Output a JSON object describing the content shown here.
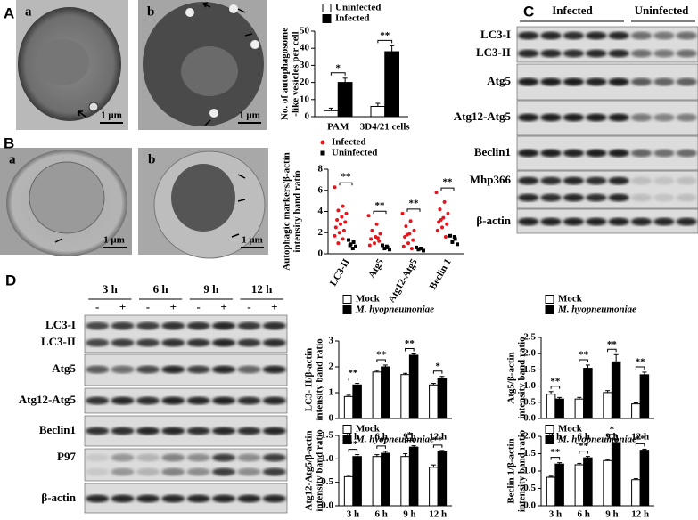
{
  "panel_labels": [
    "A",
    "B",
    "C",
    "D"
  ],
  "images": [
    {
      "label": "a",
      "scale": "1 μm"
    },
    {
      "label": "b",
      "scale": "1 μm"
    },
    {
      "label": "a",
      "scale": "1 μm"
    },
    {
      "label": "b",
      "scale": "1 μm"
    }
  ],
  "blots": [
    {
      "header": [
        "Infected",
        "Uninfected"
      ],
      "rows": [
        "LC3-I",
        "LC3-II",
        "Atg5",
        "Atg12-Atg5",
        "Beclin1",
        "Mhp366",
        "β-actin"
      ]
    },
    {
      "times": [
        "3 h",
        "6 h",
        "9 h",
        "12 h"
      ],
      "signs": [
        "-",
        "+"
      ],
      "rows": [
        "LC3-I",
        "LC3-II",
        "Atg5",
        "Atg12-Atg5",
        "Beclin1",
        "P97",
        "β-actin"
      ]
    }
  ],
  "chart_data": [
    {
      "type": "bar",
      "ylabel": [
        "No. of autophagosome",
        "-like vesicles per cell"
      ],
      "categories": [
        "PAM",
        "3D4/21 cells"
      ],
      "series": [
        {
          "name": "Uninfected",
          "color": "#ffffff",
          "values": [
            3.5,
            6
          ],
          "errors": [
            1.5,
            1.8
          ]
        },
        {
          "name": "Infected",
          "color": "#000000",
          "values": [
            20,
            38
          ],
          "errors": [
            2.5,
            3.5
          ]
        }
      ],
      "significance": [
        "*",
        "**"
      ],
      "ylim": [
        0,
        50
      ],
      "yticks": [
        0,
        10,
        20,
        30,
        40,
        50
      ]
    },
    {
      "type": "scatter",
      "ylabel": [
        "Autophagic markers/β-actin",
        "intensity band ratio"
      ],
      "categories": [
        "LC3-II",
        "Atg5",
        "Atg12-Atg5",
        "Beclin 1"
      ],
      "series": [
        {
          "name": "Infected",
          "color": "#e8141c",
          "values": [
            [
              6.3,
              4.5,
              4.1,
              3.8,
              3.5,
              3.2,
              3.0,
              2.8,
              2.5,
              2.2,
              2.0,
              1.7,
              1.4,
              1.0
            ],
            [
              3.6,
              2.8,
              2.2,
              1.9,
              1.6,
              1.4,
              1.2,
              1.0,
              0.8,
              1.5
            ],
            [
              3.8,
              3.1,
              2.6,
              2.2,
              1.9,
              1.6,
              1.3,
              1.0,
              0.7,
              0.5,
              1.8
            ],
            [
              5.8,
              4.9,
              4.2,
              3.8,
              3.4,
              3.0,
              2.8,
              2.5,
              2.2,
              1.6,
              3.2
            ]
          ]
        },
        {
          "name": "Uninfected",
          "color": "#000000",
          "values": [
            [
              1.3,
              1.1,
              0.9,
              0.7,
              0.5,
              0.8
            ],
            [
              0.8,
              0.6,
              0.5,
              0.4,
              0.7
            ],
            [
              0.6,
              0.5,
              0.4,
              0.3,
              0.5
            ],
            [
              1.7,
              1.4,
              1.1,
              0.9,
              1.6
            ]
          ]
        }
      ],
      "significance": [
        "**",
        "**",
        "**",
        "**"
      ],
      "ylim": [
        0,
        8
      ],
      "yticks": [
        0,
        2,
        4,
        6,
        8
      ]
    },
    {
      "type": "bar",
      "ylabel": [
        "LC3- II/β-actin",
        "intensity band ratio"
      ],
      "categories": [
        "3 h",
        "6 h",
        "9 h",
        "12 h"
      ],
      "series": [
        {
          "name": "Mock",
          "color": "#ffffff",
          "values": [
            0.85,
            1.8,
            1.7,
            1.3
          ],
          "errors": [
            0.05,
            0.06,
            0.05,
            0.06
          ]
        },
        {
          "name": "M. hyopneumoniae",
          "color": "#000000",
          "values": [
            1.3,
            2.0,
            2.45,
            1.55
          ],
          "errors": [
            0.06,
            0.07,
            0.05,
            0.08
          ]
        }
      ],
      "significance": [
        "**",
        "**",
        "**",
        "*"
      ],
      "ylim": [
        0,
        3
      ],
      "yticks": [
        0,
        1,
        2,
        3
      ]
    },
    {
      "type": "bar",
      "ylabel": [
        "Atg5/β-actin",
        "intensity band ratio"
      ],
      "categories": [
        "3 h",
        "6 h",
        "9 h",
        "12 h"
      ],
      "series": [
        {
          "name": "Mock",
          "color": "#ffffff",
          "values": [
            0.75,
            0.6,
            0.8,
            0.45
          ],
          "errors": [
            0.08,
            0.05,
            0.06,
            0.03
          ]
        },
        {
          "name": "M. hyopneumoniae",
          "color": "#000000",
          "values": [
            0.6,
            1.55,
            1.75,
            1.35
          ],
          "errors": [
            0.05,
            0.1,
            0.22,
            0.08
          ]
        }
      ],
      "significance": [
        "**",
        "**",
        "**",
        "**"
      ],
      "ylim": [
        0,
        2.5
      ],
      "yticks": [
        {
          "value": 0,
          "label": "0.0"
        },
        0.5,
        {
          "value": 1,
          "label": "1.0"
        },
        1.5,
        {
          "value": 2,
          "label": "2.0"
        },
        2.5
      ]
    },
    {
      "type": "bar",
      "ylabel": [
        "Atg12-Atg5/β-actin",
        "intensity band ratio"
      ],
      "categories": [
        "3 h",
        "6 h",
        "9 h",
        "12 h"
      ],
      "series": [
        {
          "name": "Mock",
          "color": "#ffffff",
          "values": [
            0.62,
            1.05,
            1.05,
            0.82
          ],
          "errors": [
            0.03,
            0.04,
            0.06,
            0.05
          ]
        },
        {
          "name": "M. hyopneumoniae",
          "color": "#000000",
          "values": [
            1.05,
            1.12,
            1.25,
            1.15
          ],
          "errors": [
            0.04,
            0.04,
            0.03,
            0.03
          ]
        }
      ],
      "significance": [
        "**",
        "*",
        "*",
        "**"
      ],
      "ylim": [
        0,
        1.5
      ],
      "yticks": [
        {
          "value": 0,
          "label": "0.0"
        },
        0.5,
        {
          "value": 1,
          "label": "1.0"
        },
        1.5
      ]
    },
    {
      "type": "bar",
      "ylabel": [
        "Beclin 1/β-actin",
        "intensity band ratio"
      ],
      "categories": [
        "3 h",
        "6 h",
        "9 h",
        "12 h"
      ],
      "series": [
        {
          "name": "Mock",
          "color": "#ffffff",
          "values": [
            0.82,
            1.18,
            1.3,
            0.75
          ],
          "errors": [
            0.03,
            0.04,
            0.03,
            0.03
          ]
        },
        {
          "name": "M. hyopneumoniae",
          "color": "#000000",
          "values": [
            1.2,
            1.38,
            1.82,
            1.6
          ],
          "errors": [
            0.04,
            0.04,
            0.08,
            0.03
          ]
        }
      ],
      "significance": [
        "**",
        "**",
        "*",
        "**"
      ],
      "ylim": [
        0,
        2
      ],
      "yticks": [
        {
          "value": 0,
          "label": "0.0"
        },
        0.5,
        {
          "value": 1,
          "label": "1.0"
        },
        1.5,
        {
          "value": 2,
          "label": "2.0"
        }
      ]
    }
  ]
}
